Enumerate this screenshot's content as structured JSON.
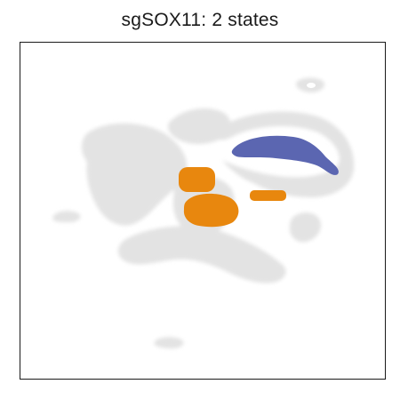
{
  "chart_data": {
    "type": "scatter",
    "title": "sgSOX11: 2 states",
    "xlabel": "",
    "ylabel": "",
    "grid": false,
    "axis_ticks": false,
    "colors": {
      "background": "#e3e3e3",
      "state_1": "#e8870e",
      "state_2": "#5b66b1",
      "frame": "#1a1a1a"
    },
    "series": [
      {
        "role": "background",
        "color": "#e3e3e3",
        "description": "all cells (grey)"
      },
      {
        "role": "highlight",
        "color": "#e8870e"
      },
      {
        "role": "highlight",
        "color": "#5b66b1"
      }
    ]
  }
}
